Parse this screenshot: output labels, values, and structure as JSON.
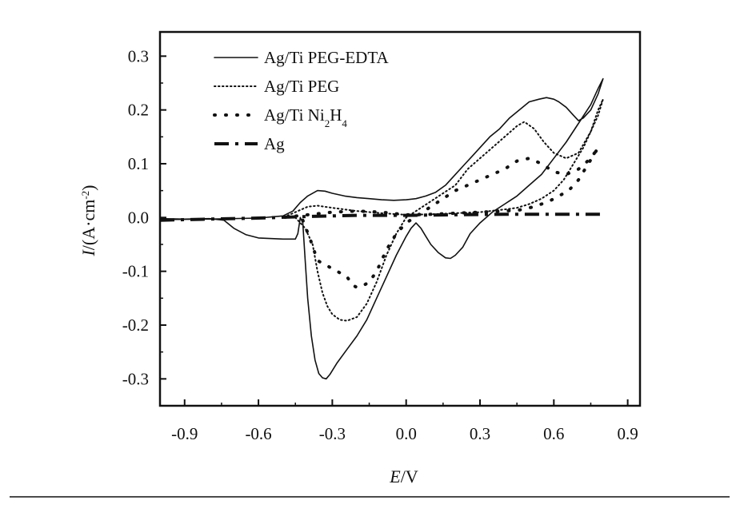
{
  "chart_data": {
    "type": "line",
    "title": "",
    "xlabel": {
      "italic": "E",
      "rest": "/V"
    },
    "ylabel": {
      "italic": "I",
      "rest": "/(A·cm",
      "sup": "-2",
      "close": ")"
    },
    "xlim": [
      -1.0,
      0.95
    ],
    "ylim": [
      -0.35,
      0.345
    ],
    "xticks": [
      -0.9,
      -0.6,
      -0.3,
      0.0,
      0.3,
      0.6,
      0.9
    ],
    "xtick_labels": [
      "-0.9",
      "-0.6",
      "-0.3",
      "0.0",
      "0.3",
      "0.6",
      "0.9"
    ],
    "yticks": [
      -0.3,
      -0.2,
      -0.1,
      0.0,
      0.1,
      0.2,
      0.3
    ],
    "ytick_labels": [
      "-0.3",
      "-0.2",
      "-0.1",
      "0.0",
      "0.1",
      "0.2",
      "0.3"
    ],
    "grid": false,
    "legend_position": "top-left",
    "series": [
      {
        "name": "Ag/Ti PEG-EDTA",
        "name_parts": [
          {
            "t": "Ag/Ti PEG-EDTA"
          }
        ],
        "style": "solid",
        "color": "#111111",
        "points": [
          [
            -1.0,
            -0.002
          ],
          [
            -0.9,
            -0.003
          ],
          [
            -0.8,
            -0.002
          ],
          [
            -0.74,
            -0.005
          ],
          [
            -0.7,
            -0.02
          ],
          [
            -0.65,
            -0.032
          ],
          [
            -0.6,
            -0.038
          ],
          [
            -0.5,
            -0.04
          ],
          [
            -0.45,
            -0.04
          ],
          [
            -0.44,
            -0.03
          ],
          [
            -0.43,
            0.0
          ],
          [
            -0.42,
            -0.01
          ],
          [
            -0.41,
            -0.08
          ],
          [
            -0.4,
            -0.15
          ],
          [
            -0.385,
            -0.22
          ],
          [
            -0.37,
            -0.265
          ],
          [
            -0.355,
            -0.29
          ],
          [
            -0.34,
            -0.298
          ],
          [
            -0.325,
            -0.3
          ],
          [
            -0.31,
            -0.292
          ],
          [
            -0.28,
            -0.27
          ],
          [
            -0.24,
            -0.245
          ],
          [
            -0.2,
            -0.22
          ],
          [
            -0.16,
            -0.19
          ],
          [
            -0.12,
            -0.15
          ],
          [
            -0.08,
            -0.11
          ],
          [
            -0.04,
            -0.07
          ],
          [
            0.0,
            -0.035
          ],
          [
            0.02,
            -0.02
          ],
          [
            0.04,
            -0.01
          ],
          [
            0.06,
            -0.02
          ],
          [
            0.08,
            -0.035
          ],
          [
            0.1,
            -0.05
          ],
          [
            0.13,
            -0.065
          ],
          [
            0.16,
            -0.075
          ],
          [
            0.18,
            -0.076
          ],
          [
            0.2,
            -0.07
          ],
          [
            0.23,
            -0.055
          ],
          [
            0.26,
            -0.03
          ],
          [
            0.3,
            -0.01
          ],
          [
            0.35,
            0.01
          ],
          [
            0.4,
            0.025
          ],
          [
            0.45,
            0.04
          ],
          [
            0.5,
            0.06
          ],
          [
            0.55,
            0.08
          ],
          [
            0.6,
            0.11
          ],
          [
            0.65,
            0.14
          ],
          [
            0.7,
            0.175
          ],
          [
            0.75,
            0.21
          ],
          [
            0.78,
            0.24
          ],
          [
            0.8,
            0.258
          ],
          [
            0.78,
            0.23
          ],
          [
            0.75,
            0.2
          ],
          [
            0.72,
            0.185
          ],
          [
            0.7,
            0.18
          ],
          [
            0.68,
            0.19
          ],
          [
            0.65,
            0.205
          ],
          [
            0.62,
            0.215
          ],
          [
            0.6,
            0.22
          ],
          [
            0.57,
            0.223
          ],
          [
            0.54,
            0.22
          ],
          [
            0.5,
            0.215
          ],
          [
            0.46,
            0.2
          ],
          [
            0.42,
            0.185
          ],
          [
            0.38,
            0.165
          ],
          [
            0.34,
            0.15
          ],
          [
            0.3,
            0.13
          ],
          [
            0.27,
            0.115
          ],
          [
            0.24,
            0.1
          ],
          [
            0.2,
            0.08
          ],
          [
            0.16,
            0.06
          ],
          [
            0.12,
            0.047
          ],
          [
            0.08,
            0.04
          ],
          [
            0.04,
            0.035
          ],
          [
            0.0,
            0.033
          ],
          [
            -0.05,
            0.032
          ],
          [
            -0.1,
            0.033
          ],
          [
            -0.15,
            0.035
          ],
          [
            -0.2,
            0.037
          ],
          [
            -0.25,
            0.04
          ],
          [
            -0.3,
            0.045
          ],
          [
            -0.33,
            0.049
          ],
          [
            -0.36,
            0.05
          ],
          [
            -0.4,
            0.04
          ],
          [
            -0.43,
            0.028
          ],
          [
            -0.46,
            0.012
          ],
          [
            -0.5,
            0.003
          ],
          [
            -0.6,
            -0.001
          ],
          [
            -0.8,
            -0.003
          ],
          [
            -1.0,
            -0.004
          ]
        ]
      },
      {
        "name": "Ag/Ti PEG",
        "name_parts": [
          {
            "t": "Ag/Ti PEG"
          }
        ],
        "style": "dotted",
        "color": "#111111",
        "points": [
          [
            -0.45,
            0.0
          ],
          [
            -0.41,
            -0.02
          ],
          [
            -0.38,
            -0.05
          ],
          [
            -0.36,
            -0.1
          ],
          [
            -0.34,
            -0.14
          ],
          [
            -0.32,
            -0.165
          ],
          [
            -0.3,
            -0.18
          ],
          [
            -0.27,
            -0.19
          ],
          [
            -0.24,
            -0.192
          ],
          [
            -0.2,
            -0.185
          ],
          [
            -0.16,
            -0.16
          ],
          [
            -0.12,
            -0.12
          ],
          [
            -0.08,
            -0.07
          ],
          [
            -0.04,
            -0.03
          ],
          [
            0.0,
            0.0
          ],
          [
            0.05,
            0.015
          ],
          [
            0.1,
            0.03
          ],
          [
            0.15,
            0.045
          ],
          [
            0.2,
            0.06
          ],
          [
            0.25,
            0.09
          ],
          [
            0.3,
            0.11
          ],
          [
            0.35,
            0.13
          ],
          [
            0.4,
            0.15
          ],
          [
            0.45,
            0.17
          ],
          [
            0.48,
            0.178
          ],
          [
            0.52,
            0.165
          ],
          [
            0.56,
            0.14
          ],
          [
            0.6,
            0.12
          ],
          [
            0.65,
            0.11
          ],
          [
            0.7,
            0.12
          ],
          [
            0.75,
            0.16
          ],
          [
            0.78,
            0.2
          ],
          [
            0.8,
            0.22
          ],
          [
            0.78,
            0.19
          ],
          [
            0.75,
            0.16
          ],
          [
            0.72,
            0.13
          ],
          [
            0.68,
            0.1
          ],
          [
            0.64,
            0.07
          ],
          [
            0.6,
            0.05
          ],
          [
            0.55,
            0.035
          ],
          [
            0.5,
            0.025
          ],
          [
            0.45,
            0.018
          ],
          [
            0.4,
            0.015
          ],
          [
            0.3,
            0.01
          ],
          [
            0.2,
            0.008
          ],
          [
            0.1,
            0.006
          ],
          [
            0.0,
            0.005
          ],
          [
            -0.1,
            0.008
          ],
          [
            -0.2,
            0.012
          ],
          [
            -0.3,
            0.018
          ],
          [
            -0.36,
            0.022
          ],
          [
            -0.4,
            0.02
          ],
          [
            -0.45,
            0.01
          ],
          [
            -0.5,
            0.0
          ]
        ]
      },
      {
        "name": "Ag/Ti Ni2H4",
        "name_parts": [
          {
            "t": "Ag/Ti Ni"
          },
          {
            "t": "2",
            "sub": true
          },
          {
            "t": "H"
          },
          {
            "t": "4",
            "sub": true
          }
        ],
        "style": "sparse-dotted",
        "color": "#111111",
        "points": [
          [
            -0.42,
            -0.005
          ],
          [
            -0.39,
            -0.04
          ],
          [
            -0.36,
            -0.08
          ],
          [
            -0.32,
            -0.09
          ],
          [
            -0.28,
            -0.1
          ],
          [
            -0.24,
            -0.11
          ],
          [
            -0.22,
            -0.125
          ],
          [
            -0.2,
            -0.13
          ],
          [
            -0.18,
            -0.128
          ],
          [
            -0.15,
            -0.12
          ],
          [
            -0.12,
            -0.1
          ],
          [
            -0.08,
            -0.06
          ],
          [
            -0.04,
            -0.03
          ],
          [
            0.0,
            -0.01
          ],
          [
            0.05,
            0.005
          ],
          [
            0.1,
            0.02
          ],
          [
            0.15,
            0.035
          ],
          [
            0.2,
            0.05
          ],
          [
            0.25,
            0.06
          ],
          [
            0.3,
            0.07
          ],
          [
            0.35,
            0.08
          ],
          [
            0.4,
            0.09
          ],
          [
            0.45,
            0.105
          ],
          [
            0.5,
            0.11
          ],
          [
            0.55,
            0.1
          ],
          [
            0.6,
            0.085
          ],
          [
            0.65,
            0.08
          ],
          [
            0.7,
            0.09
          ],
          [
            0.75,
            0.11
          ],
          [
            0.78,
            0.13
          ],
          [
            0.74,
            0.1
          ],
          [
            0.7,
            0.07
          ],
          [
            0.66,
            0.05
          ],
          [
            0.62,
            0.04
          ],
          [
            0.58,
            0.03
          ],
          [
            0.52,
            0.02
          ],
          [
            0.46,
            0.014
          ],
          [
            0.4,
            0.012
          ],
          [
            0.3,
            0.01
          ],
          [
            0.2,
            0.008
          ],
          [
            0.1,
            0.006
          ],
          [
            0.0,
            0.005
          ],
          [
            -0.1,
            0.01
          ],
          [
            -0.2,
            0.012
          ],
          [
            -0.3,
            0.01
          ],
          [
            -0.4,
            0.005
          ],
          [
            -0.5,
            0.0
          ]
        ]
      },
      {
        "name": "Ag",
        "name_parts": [
          {
            "t": "Ag"
          }
        ],
        "style": "dash-dot",
        "color": "#111111",
        "points": [
          [
            -1.0,
            -0.005
          ],
          [
            -0.8,
            -0.003
          ],
          [
            -0.6,
            -0.001
          ],
          [
            -0.4,
            0.002
          ],
          [
            -0.2,
            0.004
          ],
          [
            0.0,
            0.004
          ],
          [
            0.2,
            0.005
          ],
          [
            0.4,
            0.006
          ],
          [
            0.6,
            0.006
          ],
          [
            0.8,
            0.006
          ]
        ]
      }
    ]
  }
}
